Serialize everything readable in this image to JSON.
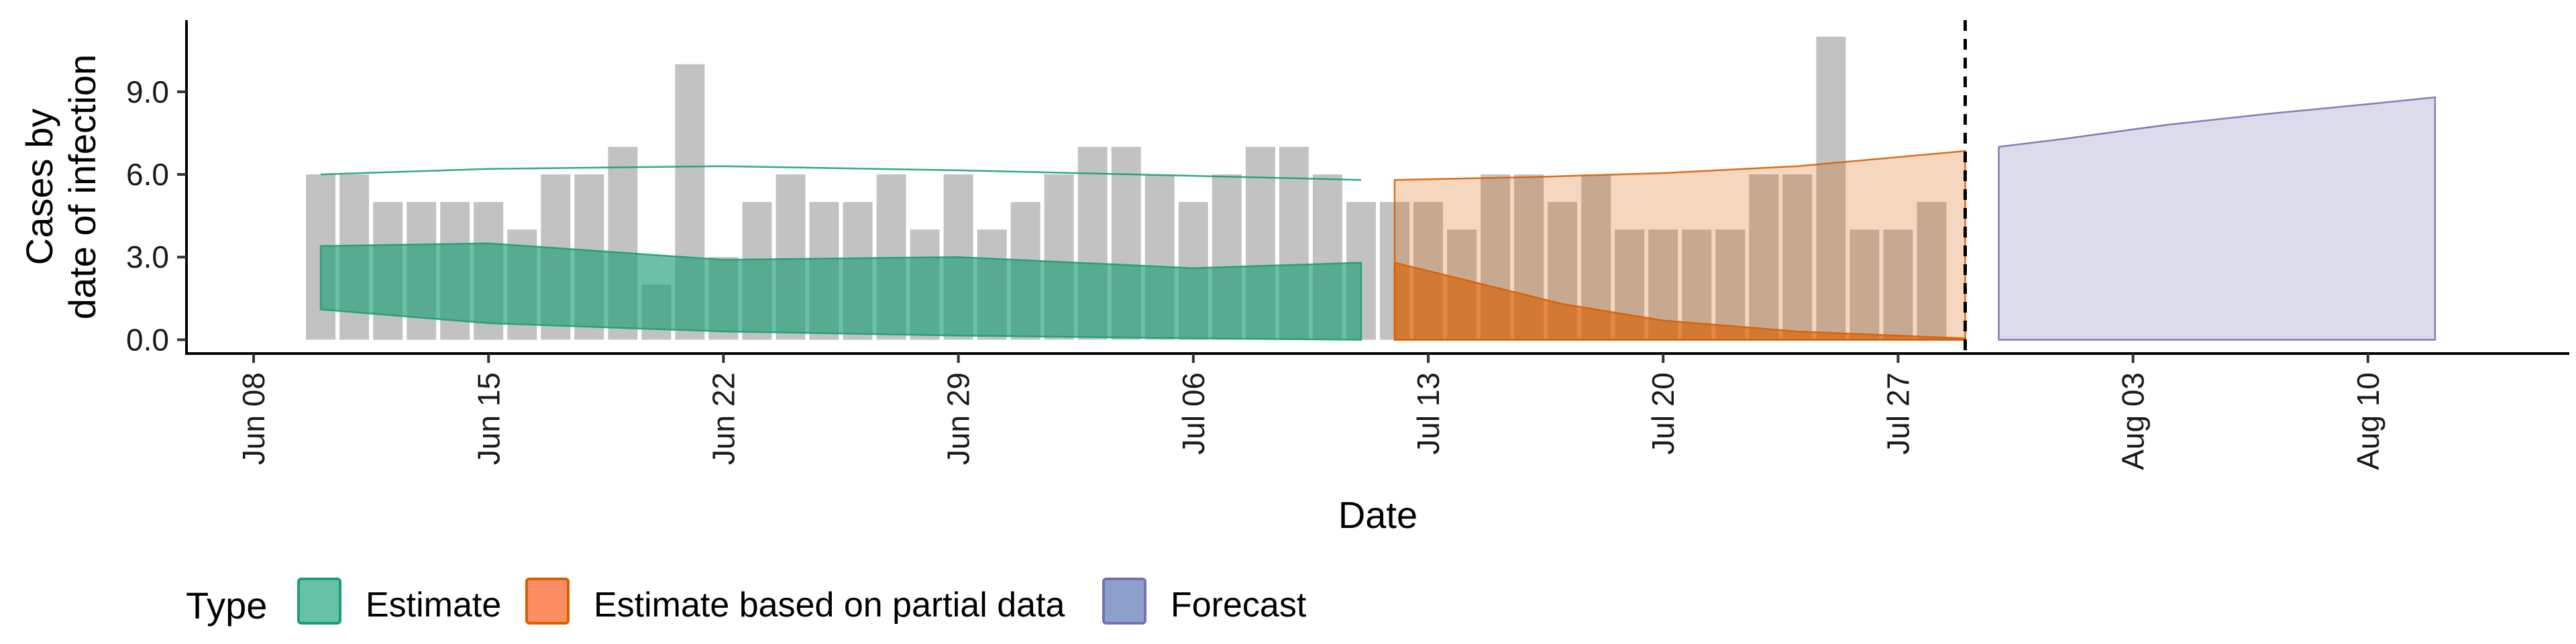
{
  "chart_data": {
    "type": "area",
    "xlabel": "Date",
    "ylabel_lines": [
      "Cases by",
      "date of infection"
    ],
    "y_ticks": [
      0.0,
      3.0,
      6.0,
      9.0
    ],
    "y_tick_labels": [
      "0.0",
      "3.0",
      "6.0",
      "9.0"
    ],
    "ylim": [
      -0.5,
      11.6
    ],
    "xlim": [
      "2020-06-06",
      "2020-08-16"
    ],
    "x_ticks": [
      "2020-06-08",
      "2020-06-15",
      "2020-06-22",
      "2020-06-29",
      "2020-07-06",
      "2020-07-13",
      "2020-07-20",
      "2020-07-27",
      "2020-08-03",
      "2020-08-10"
    ],
    "x_tick_labels": [
      "Jun 08",
      "Jun 15",
      "Jun 22",
      "Jun 29",
      "Jul 06",
      "Jul 13",
      "Jul 20",
      "Jul 27",
      "Aug 03",
      "Aug 10"
    ],
    "cutoff_date": "2020-07-29",
    "grid": false,
    "observed_cases": {
      "start": "2020-06-10",
      "color": "#bdbdbd",
      "values": [
        6,
        6,
        5,
        5,
        5,
        5,
        4,
        6,
        6,
        7,
        2,
        10,
        3,
        5,
        6,
        5,
        5,
        6,
        4,
        6,
        4,
        5,
        6,
        7,
        7,
        6,
        5,
        6,
        7,
        7,
        6,
        5,
        5,
        5,
        4,
        6,
        6,
        5,
        6,
        4,
        4,
        4,
        4,
        6,
        6,
        11,
        4,
        4,
        5
      ]
    },
    "series": [
      {
        "name": "Estimate",
        "color": "#1b9e77",
        "bands": [
          {
            "x": [
              "2020-06-10",
              "2020-06-15",
              "2020-06-22",
              "2020-06-29",
              "2020-07-06",
              "2020-07-11"
            ],
            "lower": [
              6.0,
              6.2,
              6.3,
              6.15,
              5.95,
              5.8
            ],
            "upper": [
              6.0,
              6.2,
              6.3,
              6.15,
              5.95,
              5.8
            ]
          },
          {
            "x": [
              "2020-06-10",
              "2020-06-15",
              "2020-06-22",
              "2020-06-29",
              "2020-07-06",
              "2020-07-11"
            ],
            "lower": [
              1.1,
              0.6,
              0.3,
              0.15,
              0.05,
              0.0
            ],
            "upper": [
              3.4,
              3.5,
              2.9,
              3.0,
              2.6,
              2.8
            ]
          }
        ]
      },
      {
        "name": "Estimate based on partial data",
        "color": "#d95f02",
        "bands": [
          {
            "x": [
              "2020-07-12",
              "2020-07-16",
              "2020-07-20",
              "2020-07-24",
              "2020-07-29"
            ],
            "lower": [
              0.0,
              0.0,
              0.0,
              0.0,
              0.0
            ],
            "upper": [
              5.8,
              5.9,
              6.05,
              6.3,
              6.85
            ]
          },
          {
            "x": [
              "2020-07-12",
              "2020-07-14",
              "2020-07-17",
              "2020-07-20",
              "2020-07-24",
              "2020-07-29"
            ],
            "lower": [
              0.0,
              0.0,
              0.0,
              0.0,
              0.0,
              0.0
            ],
            "upper": [
              2.8,
              2.2,
              1.3,
              0.7,
              0.3,
              0.05
            ]
          }
        ]
      },
      {
        "name": "Forecast",
        "color": "#7570b3",
        "bands": [
          {
            "x": [
              "2020-07-30",
              "2020-08-01",
              "2020-08-04",
              "2020-08-07",
              "2020-08-10",
              "2020-08-12"
            ],
            "lower": [
              0.0,
              0.0,
              0.0,
              0.0,
              0.0,
              0.0
            ],
            "upper": [
              7.0,
              7.3,
              7.8,
              8.2,
              8.55,
              8.8
            ]
          }
        ]
      }
    ],
    "legend": {
      "title": "Type",
      "placement": "bottom-left",
      "entries": [
        {
          "label": "Estimate",
          "fill": "#66c2a5",
          "stroke": "#1b9e77"
        },
        {
          "label": "Estimate based on partial data",
          "fill": "#fc8d62",
          "stroke": "#d95f02"
        },
        {
          "label": "Forecast",
          "fill": "#8da0cb",
          "stroke": "#7570b3"
        }
      ]
    }
  }
}
